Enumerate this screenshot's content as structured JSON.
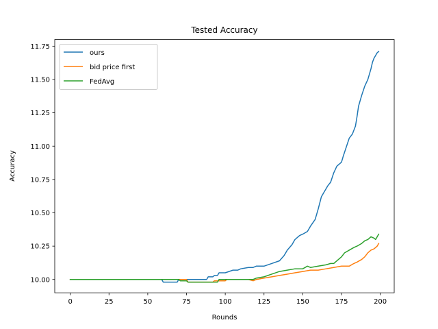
{
  "chart_data": {
    "type": "line",
    "title": "Tested Accuracy",
    "xlabel": "Rounds",
    "ylabel": "Accuracy",
    "xlim": [
      -10,
      209
    ],
    "ylim": [
      9.9,
      11.8
    ],
    "xticks": [
      0,
      25,
      50,
      75,
      100,
      125,
      150,
      175,
      200
    ],
    "yticks": [
      10.0,
      10.25,
      10.5,
      10.75,
      11.0,
      11.25,
      11.5,
      11.75
    ],
    "ytick_labels": [
      "10.00",
      "10.25",
      "10.50",
      "10.75",
      "11.00",
      "11.25",
      "11.50",
      "11.75"
    ],
    "grid": false,
    "legend_position": "top-left",
    "series": [
      {
        "name": "ours",
        "color": "#1f77b4",
        "x": [
          0,
          59,
          60,
          69,
          70,
          79,
          80,
          88,
          89,
          92,
          93,
          95,
          96,
          100,
          105,
          108,
          110,
          115,
          118,
          120,
          125,
          130,
          135,
          138,
          140,
          143,
          145,
          148,
          150,
          153,
          155,
          158,
          160,
          162,
          164,
          166,
          168,
          170,
          172,
          175,
          176,
          178,
          180,
          182,
          184,
          185,
          186,
          188,
          190,
          192,
          194,
          195,
          196,
          198,
          199
        ],
        "y": [
          10.0,
          10.0,
          9.98,
          9.98,
          10.0,
          10.0,
          10.0,
          10.0,
          10.02,
          10.02,
          10.03,
          10.03,
          10.05,
          10.05,
          10.07,
          10.07,
          10.08,
          10.09,
          10.09,
          10.1,
          10.1,
          10.12,
          10.14,
          10.18,
          10.22,
          10.26,
          10.3,
          10.33,
          10.34,
          10.36,
          10.4,
          10.45,
          10.53,
          10.62,
          10.66,
          10.7,
          10.73,
          10.8,
          10.85,
          10.88,
          10.92,
          10.99,
          11.06,
          11.09,
          11.15,
          11.22,
          11.3,
          11.38,
          11.45,
          11.5,
          11.58,
          11.63,
          11.66,
          11.7,
          11.71
        ]
      },
      {
        "name": "bid price first",
        "color": "#ff7f0e",
        "x": [
          0,
          75,
          76,
          92,
          93,
          100,
          101,
          104,
          105,
          115,
          118,
          120,
          125,
          130,
          135,
          140,
          145,
          150,
          155,
          160,
          165,
          170,
          175,
          180,
          183,
          185,
          188,
          190,
          192,
          194,
          196,
          198,
          199
        ],
        "y": [
          10.0,
          10.0,
          9.98,
          9.98,
          9.99,
          9.99,
          10.0,
          10.0,
          10.0,
          10.0,
          9.99,
          10.0,
          10.01,
          10.02,
          10.03,
          10.04,
          10.05,
          10.06,
          10.07,
          10.07,
          10.08,
          10.09,
          10.1,
          10.1,
          10.12,
          10.13,
          10.15,
          10.17,
          10.2,
          10.22,
          10.23,
          10.25,
          10.27
        ]
      },
      {
        "name": "FedAvg",
        "color": "#2ca02c",
        "x": [
          0,
          70,
          71,
          75,
          76,
          95,
          96,
          118,
          120,
          125,
          130,
          135,
          140,
          145,
          150,
          153,
          155,
          160,
          165,
          168,
          170,
          172,
          175,
          177,
          180,
          183,
          185,
          188,
          190,
          192,
          194,
          196,
          197,
          198,
          199
        ],
        "y": [
          10.0,
          10.0,
          9.99,
          9.99,
          9.98,
          9.98,
          10.0,
          10.0,
          10.01,
          10.02,
          10.04,
          10.06,
          10.07,
          10.08,
          10.08,
          10.1,
          10.09,
          10.1,
          10.11,
          10.12,
          10.12,
          10.14,
          10.17,
          10.2,
          10.22,
          10.24,
          10.25,
          10.27,
          10.29,
          10.3,
          10.32,
          10.31,
          10.3,
          10.32,
          10.34
        ]
      }
    ]
  }
}
